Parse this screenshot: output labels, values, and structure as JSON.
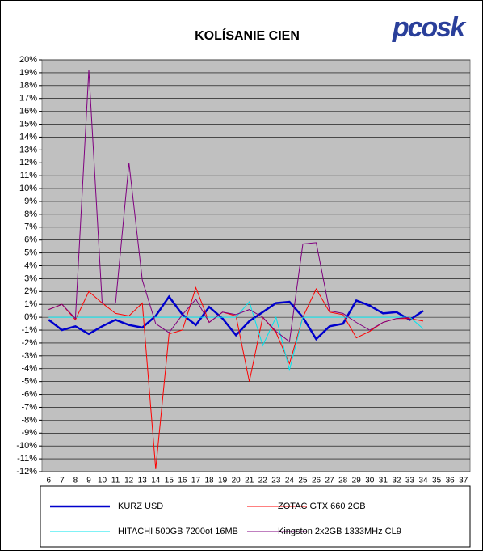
{
  "chart_data": {
    "type": "line",
    "title": "KOLÍSANIE CIEN",
    "logo": "pcosk",
    "categories": [
      "6",
      "7",
      "8",
      "9",
      "10",
      "11",
      "12",
      "13",
      "14",
      "15",
      "16",
      "17",
      "18",
      "19",
      "20",
      "21",
      "22",
      "23",
      "24",
      "25",
      "26",
      "27",
      "28",
      "29",
      "30",
      "31",
      "32",
      "33",
      "34",
      "35",
      "36",
      "37"
    ],
    "series": [
      {
        "name": "KURZ USD",
        "color": "#0000cc",
        "values": [
          -0.2,
          -1.0,
          -0.7,
          -1.3,
          -0.7,
          -0.2,
          -0.6,
          -0.8,
          0.1,
          1.6,
          0.2,
          -0.6,
          0.8,
          -0.1,
          -1.4,
          -0.3,
          0.4,
          1.1,
          1.2,
          0,
          -1.7,
          -0.7,
          -0.5,
          1.3,
          0.9,
          0.3,
          0.4,
          -0.2,
          0.5,
          null,
          null,
          null
        ]
      },
      {
        "name": "ZOTAC GTX 660 2GB",
        "color": "#ff0000",
        "values": [
          0.6,
          1.0,
          -0.2,
          2.0,
          1.1,
          0.3,
          0.1,
          1.1,
          -11.8,
          -1.3,
          -1.0,
          2.3,
          -0.4,
          0.4,
          0.1,
          -5.0,
          0,
          -1.2,
          -3.6,
          0,
          2.2,
          0.4,
          0.2,
          -1.6,
          -1.1,
          -0.4,
          -0.1,
          -0.1,
          -0.3,
          null,
          null,
          null
        ]
      },
      {
        "name": "HITACHI 500GB 7200ot 16MB",
        "color": "#00e5ee",
        "values": [
          0,
          0,
          0,
          0,
          0,
          0,
          0,
          0,
          0,
          0,
          0,
          0,
          0,
          0,
          0,
          1.2,
          -2.2,
          0,
          -4.1,
          0,
          0,
          0,
          0,
          0,
          0,
          0,
          0,
          0,
          -0.9,
          null,
          null,
          null
        ]
      },
      {
        "name": "Kingston 2x2GB 1333MHz CL9",
        "color": "#800080",
        "values": [
          0.6,
          1.0,
          -0.1,
          19.2,
          1.1,
          1.1,
          12.0,
          2.9,
          -0.5,
          -1.2,
          0.2,
          1.4,
          -0.4,
          0.4,
          0.2,
          0.6,
          0,
          -1.1,
          -1.9,
          5.7,
          5.8,
          0.5,
          0.3,
          -0.4,
          -1.0,
          -0.4,
          -0.1,
          0,
          null,
          null,
          null,
          null
        ]
      }
    ],
    "ylim": [
      -12,
      20
    ],
    "yticks": [
      {
        "value": 20,
        "label": "20%"
      },
      {
        "value": 19,
        "label": "19%"
      },
      {
        "value": 18,
        "label": "18%"
      },
      {
        "value": 17,
        "label": "17%"
      },
      {
        "value": 16,
        "label": "16%"
      },
      {
        "value": 15,
        "label": "15%"
      },
      {
        "value": 14,
        "label": "14%"
      },
      {
        "value": 13,
        "label": "13%"
      },
      {
        "value": 12,
        "label": "12%"
      },
      {
        "value": 11,
        "label": "11%"
      },
      {
        "value": 10,
        "label": "10%"
      },
      {
        "value": 9,
        "label": "9%"
      },
      {
        "value": 8,
        "label": "8%"
      },
      {
        "value": 7,
        "label": "7%"
      },
      {
        "value": 6,
        "label": "6%"
      },
      {
        "value": 5,
        "label": "5%"
      },
      {
        "value": 4,
        "label": "4%"
      },
      {
        "value": 3,
        "label": "3%"
      },
      {
        "value": 2,
        "label": "2%"
      },
      {
        "value": 1,
        "label": "1%"
      },
      {
        "value": 0,
        "label": "0%"
      },
      {
        "value": -1,
        "label": "-1%"
      },
      {
        "value": -2,
        "label": "-2%"
      },
      {
        "value": -3,
        "label": "-3%"
      },
      {
        "value": -4,
        "label": "-4%"
      },
      {
        "value": -5,
        "label": "-5%"
      },
      {
        "value": -6,
        "label": "-6%"
      },
      {
        "value": -7,
        "label": "-7%"
      },
      {
        "value": -8,
        "label": "-8%"
      },
      {
        "value": -9,
        "label": "-9%"
      },
      {
        "value": -10,
        "label": "-10%"
      },
      {
        "value": -11,
        "label": "-11%"
      },
      {
        "value": -12,
        "label": "-12%"
      }
    ],
    "grid": true,
    "plot_background": "#c0c0c0",
    "legend": "bottom"
  }
}
